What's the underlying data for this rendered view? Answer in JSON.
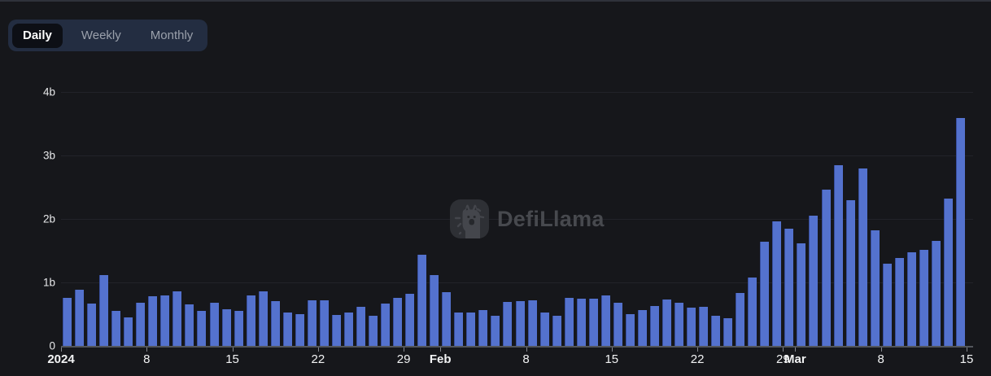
{
  "header_tabs": {
    "items": [
      {
        "label": "Daily",
        "active": true
      },
      {
        "label": "Weekly",
        "active": false
      },
      {
        "label": "Monthly",
        "active": false
      }
    ]
  },
  "watermark": {
    "brand": "DefiLlama"
  },
  "colors": {
    "background": "#16171b",
    "top_border": "#2f323a",
    "bar": "#5472ce",
    "bar_edge": "#39509f",
    "gridline": "#222329",
    "axis_line": "#53565c",
    "tick": "#83868c",
    "y_label": "#e7e8ea",
    "x_label": "#f2f3f4",
    "tab_container": "#232d41",
    "tab_active_bg": "#0d0f15",
    "tab_active_text": "#ffffff",
    "tab_inactive_text": "#9aa0ab",
    "watermark": "#47494e"
  },
  "chart_data": {
    "type": "bar",
    "title": "",
    "xlabel": "",
    "ylabel": "",
    "unit": "billions (b)",
    "grid": true,
    "legend": "none",
    "ylim": [
      0,
      4
    ],
    "yticks": [
      "0",
      "1b",
      "2b",
      "3b",
      "4b"
    ],
    "x_ticks": [
      {
        "label": "2024",
        "day": 1,
        "bold": true
      },
      {
        "label": "8",
        "day": 8,
        "bold": false
      },
      {
        "label": "15",
        "day": 15,
        "bold": false
      },
      {
        "label": "22",
        "day": 22,
        "bold": false
      },
      {
        "label": "29",
        "day": 29,
        "bold": false
      },
      {
        "label": "Feb",
        "day": 32,
        "bold": true
      },
      {
        "label": "8",
        "day": 39,
        "bold": false
      },
      {
        "label": "15",
        "day": 46,
        "bold": false
      },
      {
        "label": "22",
        "day": 53,
        "bold": false
      },
      {
        "label": "29",
        "day": 60,
        "bold": false
      },
      {
        "label": "Mar",
        "day": 61,
        "bold": true
      },
      {
        "label": "8",
        "day": 68,
        "bold": false
      },
      {
        "label": "15",
        "day": 75,
        "bold": false
      }
    ],
    "values": [
      0.75,
      0.89,
      0.67,
      1.12,
      0.55,
      0.45,
      0.68,
      0.78,
      0.8,
      0.86,
      0.65,
      0.55,
      0.68,
      0.58,
      0.55,
      0.79,
      0.86,
      0.7,
      0.52,
      0.5,
      0.72,
      0.72,
      0.49,
      0.52,
      0.62,
      0.47,
      0.67,
      0.76,
      0.82,
      1.43,
      1.11,
      0.84,
      0.53,
      0.53,
      0.56,
      0.47,
      0.69,
      0.7,
      0.72,
      0.52,
      0.48,
      0.76,
      0.74,
      0.74,
      0.8,
      0.68,
      0.5,
      0.56,
      0.63,
      0.73,
      0.68,
      0.6,
      0.62,
      0.48,
      0.44,
      0.83,
      1.08,
      1.64,
      1.96,
      1.85,
      1.62,
      2.05,
      2.46,
      2.84,
      2.29,
      2.8,
      1.82,
      1.29,
      1.39,
      1.48,
      1.51,
      1.66,
      2.32,
      3.59
    ]
  }
}
